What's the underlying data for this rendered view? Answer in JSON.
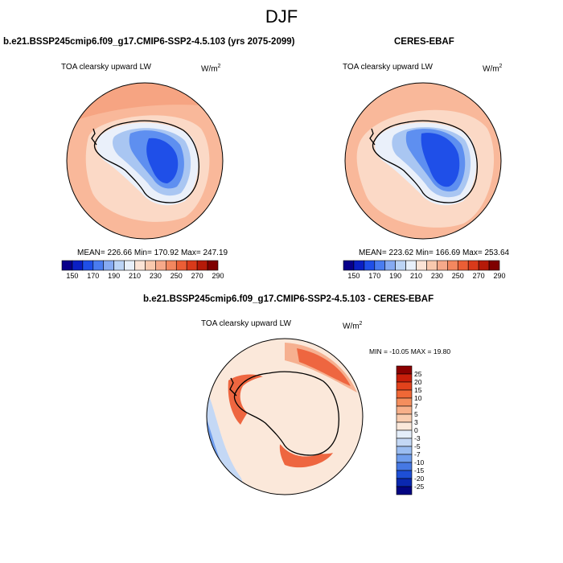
{
  "figure": {
    "title": "DJF"
  },
  "panels": {
    "model": {
      "title": "b.e21.BSSP245cmip6.f09_g17.CMIP6-SSP2-4.5.103 (yrs 2075-2099)",
      "variable": "TOA clearsky upward LW",
      "units_base": "W/m",
      "units_exp": "2",
      "stats": "MEAN= 226.66  Min= 170.92  Max= 247.19"
    },
    "obs": {
      "title": "CERES-EBAF",
      "variable": "TOA clearsky upward LW",
      "units_base": "W/m",
      "units_exp": "2",
      "stats": "MEAN= 223.62  Min= 166.69  Max= 253.64"
    },
    "diff": {
      "title": "b.e21.BSSP245cmip6.f09_g17.CMIP6-SSP2-4.5.103 - CERES-EBAF",
      "variable": "TOA clearsky upward LW",
      "units_base": "W/m",
      "units_exp": "2",
      "stats": "MIN = -10.05 MAX =  19.80"
    }
  },
  "colorbar_abs": {
    "colors": [
      "#08008a",
      "#0a1fc4",
      "#1f4fe8",
      "#4a7cf0",
      "#86aaf2",
      "#bcd4f5",
      "#e8f0fa",
      "#fbe4d6",
      "#f9c9ae",
      "#f6a98a",
      "#f3875f",
      "#eb5e35",
      "#d93a1a",
      "#b51a08",
      "#7f0000"
    ],
    "labels": [
      "150",
      "170",
      "190",
      "210",
      "230",
      "250",
      "270",
      "290"
    ]
  },
  "colorbar_diff": {
    "colors": [
      "#8b0000",
      "#c81e0a",
      "#e2421c",
      "#f06836",
      "#f48e5d",
      "#f7b08a",
      "#f9cdb0",
      "#fbe8da",
      "#e4eefa",
      "#c4d8f5",
      "#9bbdf1",
      "#6f9ded",
      "#4678e3",
      "#1e4fd6",
      "#0a28b0",
      "#030582"
    ],
    "labels": [
      "25",
      "20",
      "15",
      "10",
      "7",
      "5",
      "3",
      "0",
      "-3",
      "-5",
      "-7",
      "-10",
      "-15",
      "-20",
      "-25"
    ]
  },
  "map_colors": {
    "ocean_warm": "#f9b89a",
    "ocean_warm2": "#f6a482",
    "ocean_pale": "#fbd9c6",
    "ice_pale": "#eaf0fa",
    "ice_light": "#a9c6f2",
    "ice_mid": "#5e8ff0",
    "ice_deep": "#1f4fe8",
    "diff_red": "#ee6640",
    "diff_lightred": "#f6b090",
    "diff_pale": "#fbe8da",
    "diff_blue": "#6f9ded",
    "diff_lightblue": "#c4d8f5"
  }
}
